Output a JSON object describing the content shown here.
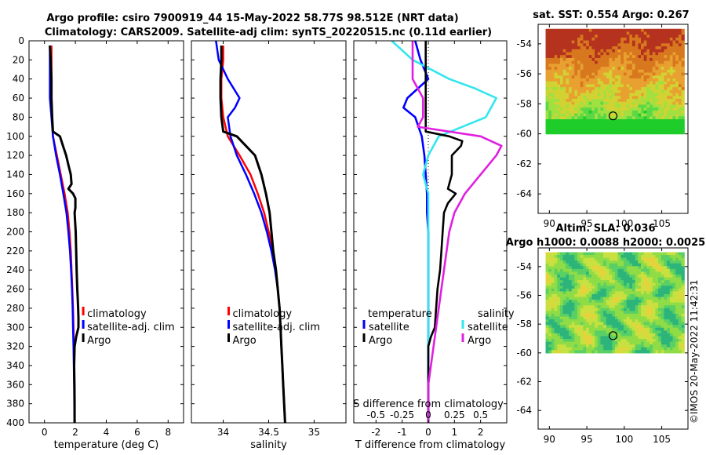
{
  "title_line1": "Argo profile: csiro 7900919_44 15-May-2022 58.77S 98.512E (NRT data)",
  "title_line2": "Climatology: CARS2009. Satellite-adj clim: synTS_20220515.nc (0.11d earlier)",
  "timestamp": "©IMOS 20-May-2022 11:42:31",
  "colors": {
    "climatology": "#ff0000",
    "satellite": "#0000ff",
    "argo": "#000000",
    "sat_salinity": "#33e6ee",
    "argo_salinity": "#e020e0"
  },
  "chart_data": [
    {
      "type": "line",
      "id": "temperature",
      "xlabel": "temperature (deg C)",
      "xlim": [
        -1,
        9
      ],
      "xticks": [
        "0",
        "2",
        "4",
        "6",
        "8"
      ],
      "ylim": [
        0,
        400
      ],
      "yticks": [
        "0",
        "20",
        "40",
        "60",
        "80",
        "100",
        "120",
        "140",
        "160",
        "180",
        "200",
        "220",
        "240",
        "260",
        "280",
        "300",
        "320",
        "340",
        "360",
        "380",
        "400"
      ],
      "legend": [
        "climatology",
        "satellite-adj. clim",
        "Argo"
      ],
      "series": [
        {
          "name": "climatology",
          "depth": [
            5,
            20,
            40,
            60,
            80,
            100,
            120,
            140,
            160,
            180,
            200,
            220,
            240,
            260,
            280,
            300,
            320,
            340,
            360,
            380,
            400
          ],
          "values": [
            0.45,
            0.45,
            0.45,
            0.45,
            0.5,
            0.55,
            0.8,
            1.05,
            1.3,
            1.5,
            1.62,
            1.7,
            1.75,
            1.8,
            1.85,
            1.88,
            1.9,
            1.92,
            1.93,
            1.95,
            1.95
          ]
        },
        {
          "name": "satellite-adj. clim",
          "depth": [
            5,
            20,
            40,
            60,
            80,
            100,
            120,
            140,
            160,
            180,
            200,
            220,
            240,
            260,
            280,
            300,
            320,
            340,
            360,
            380,
            400
          ],
          "values": [
            0.35,
            0.35,
            0.35,
            0.35,
            0.45,
            0.55,
            0.75,
            1.0,
            1.22,
            1.42,
            1.55,
            1.65,
            1.72,
            1.78,
            1.82,
            1.85,
            1.88,
            1.9,
            1.92,
            1.93,
            1.95
          ]
        },
        {
          "name": "Argo",
          "depth": [
            5,
            20,
            40,
            60,
            80,
            95,
            100,
            110,
            120,
            130,
            140,
            150,
            155,
            160,
            165,
            175,
            180,
            200,
            220,
            240,
            260,
            270,
            280,
            290,
            300,
            310,
            320,
            340,
            360,
            380,
            400
          ],
          "values": [
            0.35,
            0.4,
            0.45,
            0.45,
            0.5,
            0.55,
            1.0,
            1.2,
            1.4,
            1.55,
            1.7,
            1.75,
            1.55,
            1.85,
            2.0,
            2.0,
            1.95,
            2.02,
            2.05,
            2.08,
            2.12,
            2.15,
            2.18,
            2.2,
            2.2,
            2.05,
            1.95,
            1.92,
            1.94,
            1.95,
            1.95
          ]
        }
      ]
    },
    {
      "type": "line",
      "id": "salinity",
      "xlabel": "salinity",
      "xlim": [
        33.65,
        35.35
      ],
      "xticks": [
        "34",
        "34.5",
        "35"
      ],
      "ylim": [
        0,
        400
      ],
      "legend": [
        "climatology",
        "satellite-adj. clim",
        "Argo"
      ],
      "series": [
        {
          "name": "climatology",
          "depth": [
            5,
            20,
            40,
            60,
            80,
            100,
            120,
            140,
            160,
            180,
            200,
            220,
            240,
            260,
            280,
            300,
            320,
            340,
            360,
            380,
            400
          ],
          "values": [
            34.0,
            34.0,
            33.98,
            33.98,
            34.0,
            34.05,
            34.18,
            34.3,
            34.38,
            34.45,
            34.5,
            34.55,
            34.58,
            34.6,
            34.62,
            34.63,
            34.64,
            34.65,
            34.66,
            34.67,
            34.68
          ]
        },
        {
          "name": "satellite-adj. clim",
          "depth": [
            0,
            20,
            40,
            60,
            70,
            80,
            100,
            120,
            140,
            160,
            180,
            200,
            220,
            240,
            260,
            280,
            300,
            320,
            340,
            360,
            380,
            400
          ],
          "values": [
            33.92,
            33.95,
            34.05,
            34.18,
            34.13,
            34.05,
            34.08,
            34.15,
            34.25,
            34.34,
            34.42,
            34.48,
            34.53,
            34.57,
            34.6,
            34.62,
            34.63,
            34.64,
            34.65,
            34.66,
            34.67,
            34.68
          ]
        },
        {
          "name": "Argo",
          "depth": [
            5,
            20,
            40,
            60,
            80,
            95,
            100,
            110,
            120,
            140,
            160,
            180,
            200,
            220,
            240,
            260,
            280,
            300,
            320,
            340,
            360,
            380,
            400
          ],
          "values": [
            33.98,
            33.98,
            33.97,
            33.97,
            33.98,
            34.0,
            34.15,
            34.25,
            34.35,
            34.42,
            34.47,
            34.51,
            34.53,
            34.55,
            34.58,
            34.6,
            34.62,
            34.63,
            34.64,
            34.65,
            34.66,
            34.67,
            34.68
          ]
        }
      ]
    },
    {
      "type": "line",
      "id": "difference",
      "xlabel": "T difference from climatology",
      "xlabel_top": "S difference from climatology",
      "xlim": [
        -2.85,
        3.0
      ],
      "xticks": [
        "-2",
        "-1",
        "0",
        "1",
        "2"
      ],
      "xticks_top": [
        "-0.5",
        "-0.25",
        "0",
        "0.25",
        "0.5"
      ],
      "ylim": [
        0,
        400
      ],
      "legend_headers": [
        "temperature",
        "salinity"
      ],
      "legend": [
        "satellite",
        "Argo",
        "satellite",
        "Argo"
      ],
      "series": [
        {
          "name": "temperature satellite",
          "depth": [
            0,
            20,
            40,
            60,
            70,
            80,
            100,
            120,
            140,
            160,
            180,
            200,
            240,
            280,
            320,
            360,
            400
          ],
          "values": [
            -0.5,
            -0.3,
            0.0,
            -0.8,
            -0.95,
            -0.5,
            -0.25,
            -0.15,
            -0.1,
            -0.05,
            -0.05,
            0.0,
            0.0,
            0.0,
            0.0,
            0.0,
            0.0
          ]
        },
        {
          "name": "salinity satellite",
          "depth": [
            0,
            20,
            40,
            50,
            60,
            70,
            80,
            100,
            120,
            140,
            160,
            200,
            240,
            280,
            320,
            360,
            400
          ],
          "values": [
            -0.35,
            -0.15,
            0.2,
            0.45,
            0.65,
            0.6,
            0.55,
            0.1,
            0.0,
            -0.05,
            0.0,
            0.0,
            0.0,
            0.0,
            0.0,
            0.0,
            0.0
          ]
        },
        {
          "name": "temperature Argo",
          "depth": [
            0,
            40,
            60,
            80,
            95,
            100,
            105,
            110,
            120,
            140,
            155,
            160,
            170,
            180,
            200,
            220,
            240,
            260,
            280,
            300,
            310,
            320,
            340,
            360,
            400
          ],
          "values": [
            -0.1,
            -0.1,
            -0.1,
            -0.1,
            -0.1,
            0.8,
            1.3,
            1.25,
            0.9,
            0.9,
            0.75,
            1.05,
            0.75,
            0.6,
            0.55,
            0.5,
            0.45,
            0.35,
            0.3,
            0.25,
            0.1,
            0.0,
            0.0,
            0.0,
            0.0
          ]
        },
        {
          "name": "salinity Argo",
          "depth": [
            0,
            40,
            60,
            80,
            90,
            100,
            110,
            120,
            140,
            160,
            180,
            200,
            240,
            280,
            320,
            360,
            400
          ],
          "values": [
            -0.15,
            -0.15,
            -0.05,
            -0.05,
            -0.1,
            0.5,
            0.7,
            0.65,
            0.5,
            0.35,
            0.25,
            0.2,
            0.15,
            0.1,
            0.05,
            0.0,
            0.0
          ]
        }
      ]
    },
    {
      "type": "heatmap",
      "id": "sst",
      "title": "sat. SST: 0.554 Argo: 0.267",
      "xlim": [
        88.5,
        108.5
      ],
      "ylim": [
        -65.3,
        -52.7
      ],
      "xticks": [
        "90",
        "95",
        "100",
        "105"
      ],
      "yticks": [
        "-54",
        "-56",
        "-58",
        "-60",
        "-62",
        "-64"
      ],
      "data_extent": {
        "lon": [
          89.5,
          108
        ],
        "lat": [
          -60,
          -53
        ]
      },
      "marker": {
        "lon": 98.5,
        "lat": -58.8
      }
    },
    {
      "type": "heatmap",
      "id": "sla",
      "title": "Altim. SLA: 0.036",
      "subtitle": "Argo h1000: 0.0088 h2000: 0.0025",
      "xlim": [
        88.5,
        108.5
      ],
      "ylim": [
        -65.3,
        -52.7
      ],
      "xticks": [
        "90",
        "95",
        "100",
        "105"
      ],
      "yticks": [
        "-54",
        "-56",
        "-58",
        "-60",
        "-62",
        "-64"
      ],
      "data_extent": {
        "lon": [
          89.5,
          108
        ],
        "lat": [
          -60,
          -53
        ]
      },
      "marker": {
        "lon": 98.5,
        "lat": -58.8
      }
    }
  ]
}
